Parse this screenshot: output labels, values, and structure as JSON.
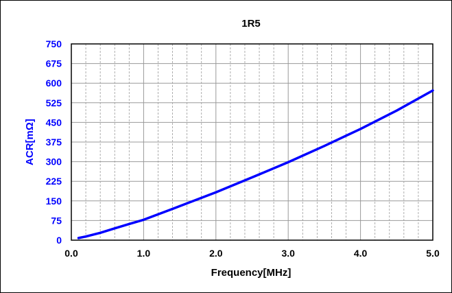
{
  "chart_data": {
    "type": "line",
    "title": "1R5",
    "xlabel": "Frequency[MHz]",
    "ylabel": "ACR[mΩ]",
    "xlim": [
      0,
      5
    ],
    "ylim": [
      0,
      750
    ],
    "x_ticks": [
      "0.0",
      "1.0",
      "2.0",
      "3.0",
      "4.0",
      "5.0"
    ],
    "y_ticks": [
      "0",
      "75",
      "150",
      "225",
      "300",
      "375",
      "450",
      "525",
      "600",
      "675",
      "750"
    ],
    "grid": true,
    "minor_x_grid_step": 0.2,
    "series": [
      {
        "color": "#0000ff",
        "x": [
          0.1,
          0.2,
          0.4,
          0.6,
          0.8,
          1.0,
          1.5,
          2.0,
          2.5,
          3.0,
          3.5,
          4.0,
          4.5,
          5.0
        ],
        "y": [
          8,
          14,
          28,
          45,
          62,
          78,
          130,
          183,
          240,
          298,
          360,
          425,
          495,
          572
        ]
      }
    ],
    "colors": {
      "axis_tick_labels": "#0000ff",
      "ylabel": "#0000ff",
      "text": "#000000",
      "grid": "#999999"
    }
  }
}
